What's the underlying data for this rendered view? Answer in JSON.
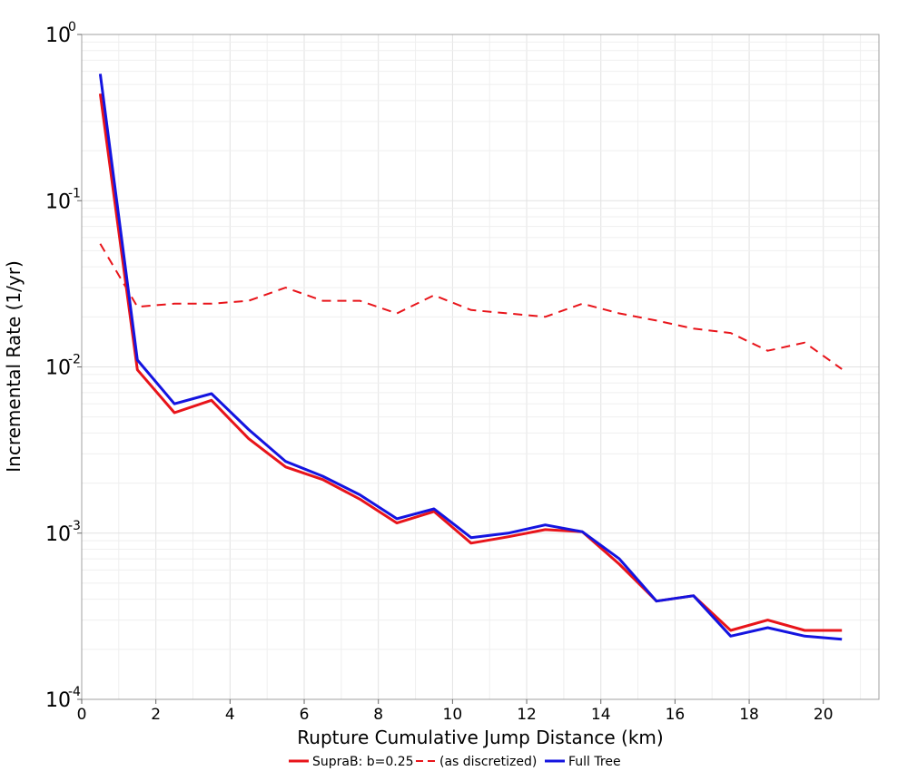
{
  "chart_data": {
    "type": "line",
    "title": "",
    "xlabel": "Rupture Cumulative Jump Distance (km)",
    "ylabel": "Incremental Rate (1/yr)",
    "xlim": [
      0,
      21.5
    ],
    "ylim": [
      0.0001,
      1
    ],
    "yscale": "log",
    "grid": true,
    "legend_position": "bottom",
    "x_ticks": [
      "0",
      "2",
      "4",
      "6",
      "8",
      "10",
      "12",
      "14",
      "16",
      "18",
      "20"
    ],
    "y_ticks": [
      {
        "base": "10",
        "exp": "-4"
      },
      {
        "base": "10",
        "exp": "-3"
      },
      {
        "base": "10",
        "exp": "-2"
      },
      {
        "base": "10",
        "exp": "-1"
      },
      {
        "base": "10",
        "exp": "0"
      }
    ],
    "x": [
      0.5,
      1.5,
      2.5,
      3.5,
      4.5,
      5.5,
      6.5,
      7.5,
      8.5,
      9.5,
      10.5,
      11.5,
      12.5,
      13.5,
      14.5,
      15.5,
      16.5,
      17.5,
      18.5,
      19.5,
      20.5
    ],
    "series": [
      {
        "name": "SupraB: b=0.25",
        "color": "#e8141a",
        "dash": "solid",
        "values": [
          0.44,
          0.0096,
          0.0053,
          0.0063,
          0.0037,
          0.0025,
          0.0021,
          0.0016,
          0.00115,
          0.00135,
          0.00087,
          0.00095,
          0.00105,
          0.00102,
          0.00065,
          0.00039,
          0.00042,
          0.00026,
          0.0003,
          0.00026,
          0.00026
        ]
      },
      {
        "name": "(as discretized)",
        "color": "#e8141a",
        "dash": "dashed",
        "values": [
          0.055,
          0.023,
          0.024,
          0.024,
          0.025,
          0.03,
          0.025,
          0.025,
          0.021,
          0.027,
          0.022,
          0.021,
          0.02,
          0.024,
          0.021,
          0.019,
          0.017,
          0.016,
          0.0125,
          0.014,
          0.0097
        ]
      },
      {
        "name": "Full Tree",
        "color": "#1414e0",
        "dash": "solid",
        "values": [
          0.58,
          0.011,
          0.006,
          0.0069,
          0.0042,
          0.0027,
          0.0022,
          0.0017,
          0.00122,
          0.0014,
          0.00094,
          0.001,
          0.00112,
          0.00102,
          0.0007,
          0.00039,
          0.00042,
          0.00024,
          0.00027,
          0.00024,
          0.00023
        ]
      }
    ]
  }
}
